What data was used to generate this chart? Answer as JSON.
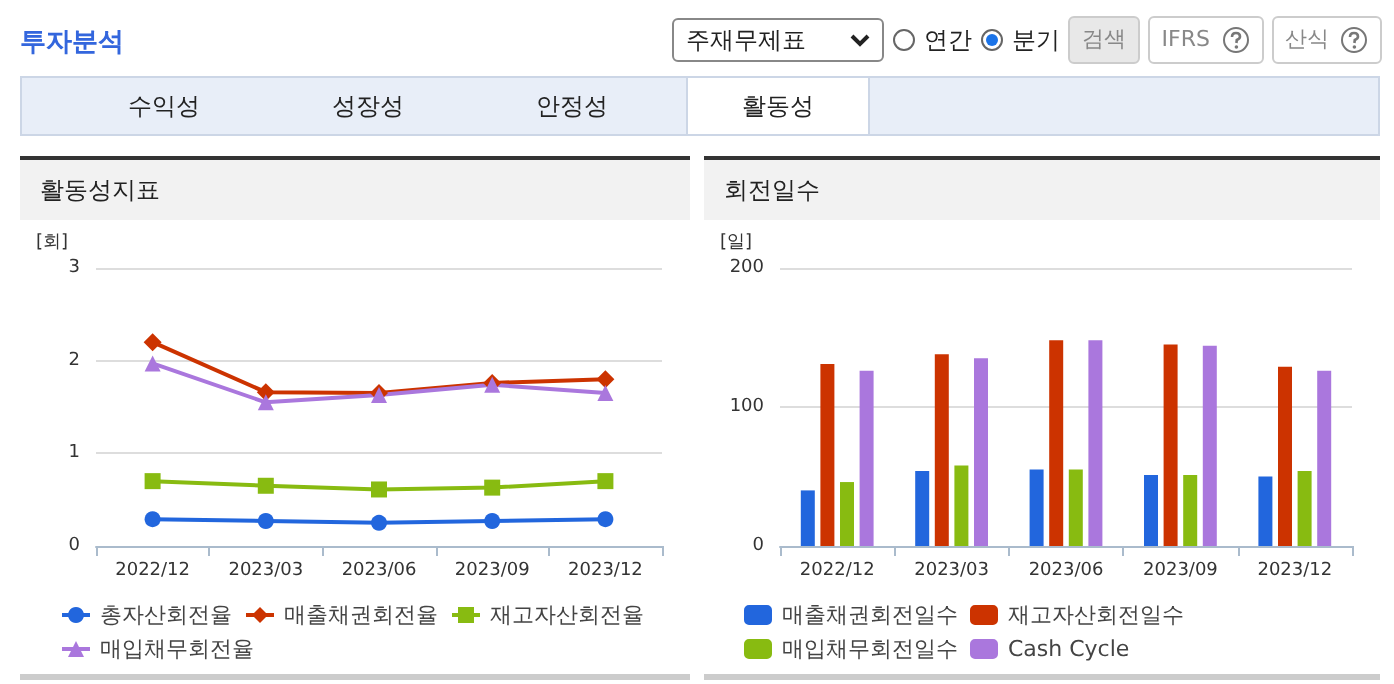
{
  "chart_data": [
    {
      "type": "other",
      "title": "투자분석",
      "annotations": [
        "주재무제표",
        "연간",
        "분기",
        "검색",
        "IFRS",
        "산식",
        "수익성",
        "성장성",
        "안정성",
        "활동성"
      ]
    },
    {
      "type": "line",
      "title": "활동성지표",
      "ylabel": "[회]",
      "categories": [
        "2022/12",
        "2023/03",
        "2023/06",
        "2023/09",
        "2023/12"
      ],
      "series": [
        {
          "name": "총자산회전율",
          "color": "#2266dd",
          "marker": "circle",
          "values": [
            0.29,
            0.27,
            0.25,
            0.27,
            0.29
          ]
        },
        {
          "name": "매출채권회전율",
          "color": "#cc3300",
          "marker": "diamond",
          "values": [
            2.2,
            1.66,
            1.65,
            1.76,
            1.8
          ]
        },
        {
          "name": "재고자산회전율",
          "color": "#88bb11",
          "marker": "square",
          "values": [
            0.7,
            0.65,
            0.61,
            0.63,
            0.7
          ]
        },
        {
          "name": "매입채무회전율",
          "color": "#aa77dd",
          "marker": "triangle",
          "values": [
            1.97,
            1.55,
            1.63,
            1.74,
            1.65
          ]
        }
      ],
      "ylim": [
        0,
        3
      ],
      "yticks": [
        0,
        1,
        2,
        3
      ],
      "grid": "y",
      "legend": "bottom"
    },
    {
      "type": "bar",
      "title": "회전일수",
      "ylabel": "[일]",
      "categories": [
        "2022/12",
        "2023/03",
        "2023/06",
        "2023/09",
        "2023/12"
      ],
      "series": [
        {
          "name": "매출채권회전일수",
          "color": "#2266dd",
          "values": [
            40,
            54,
            55,
            51,
            50
          ]
        },
        {
          "name": "재고자산회전일수",
          "color": "#cc3300",
          "values": [
            131,
            138,
            148,
            145,
            129
          ]
        },
        {
          "name": "매입채무회전일수",
          "color": "#88bb11",
          "values": [
            46,
            58,
            55,
            51,
            54
          ]
        },
        {
          "name": "Cash Cycle",
          "color": "#aa77dd",
          "values": [
            126,
            135,
            148,
            144,
            126
          ]
        }
      ],
      "ylim": [
        0,
        200
      ],
      "yticks": [
        0,
        100,
        200
      ],
      "grid": "y",
      "legend": "bottom"
    }
  ]
}
